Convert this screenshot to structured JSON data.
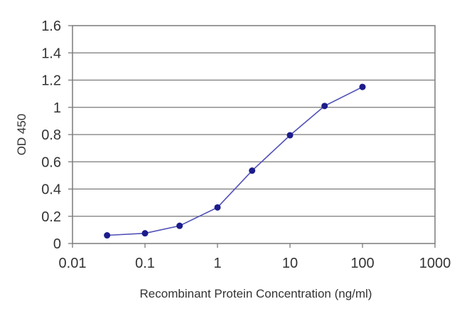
{
  "chart_data": {
    "type": "line",
    "xscale": "log",
    "xlim": [
      0.01,
      1000
    ],
    "ylim": [
      0,
      1.6
    ],
    "xticks": [
      0.01,
      0.1,
      1,
      10,
      100,
      1000
    ],
    "xtick_labels": [
      "0.01",
      "0.1",
      "1",
      "10",
      "100",
      "1000"
    ],
    "yticks": [
      0,
      0.2,
      0.4,
      0.6,
      0.8,
      1,
      1.2,
      1.4,
      1.6
    ],
    "ytick_labels": [
      "0",
      "0.2",
      "0.4",
      "0.6",
      "0.8",
      "1",
      "1.2",
      "1.4",
      "1.6"
    ],
    "xlabel": "Recombinant Protein Concentration (ng/ml)",
    "ylabel": "OD 450",
    "grid": "horizontal",
    "series": [
      {
        "x": [
          0.03,
          0.1,
          0.3,
          1,
          3,
          10,
          30,
          100
        ],
        "y": [
          0.06,
          0.075,
          0.13,
          0.265,
          0.535,
          0.795,
          1.01,
          1.15
        ]
      }
    ],
    "colors": {
      "line": "#5050b8",
      "marker": "#1c1c8c",
      "grid": "#7a7a7a",
      "frame": "#7a7a7a"
    }
  }
}
